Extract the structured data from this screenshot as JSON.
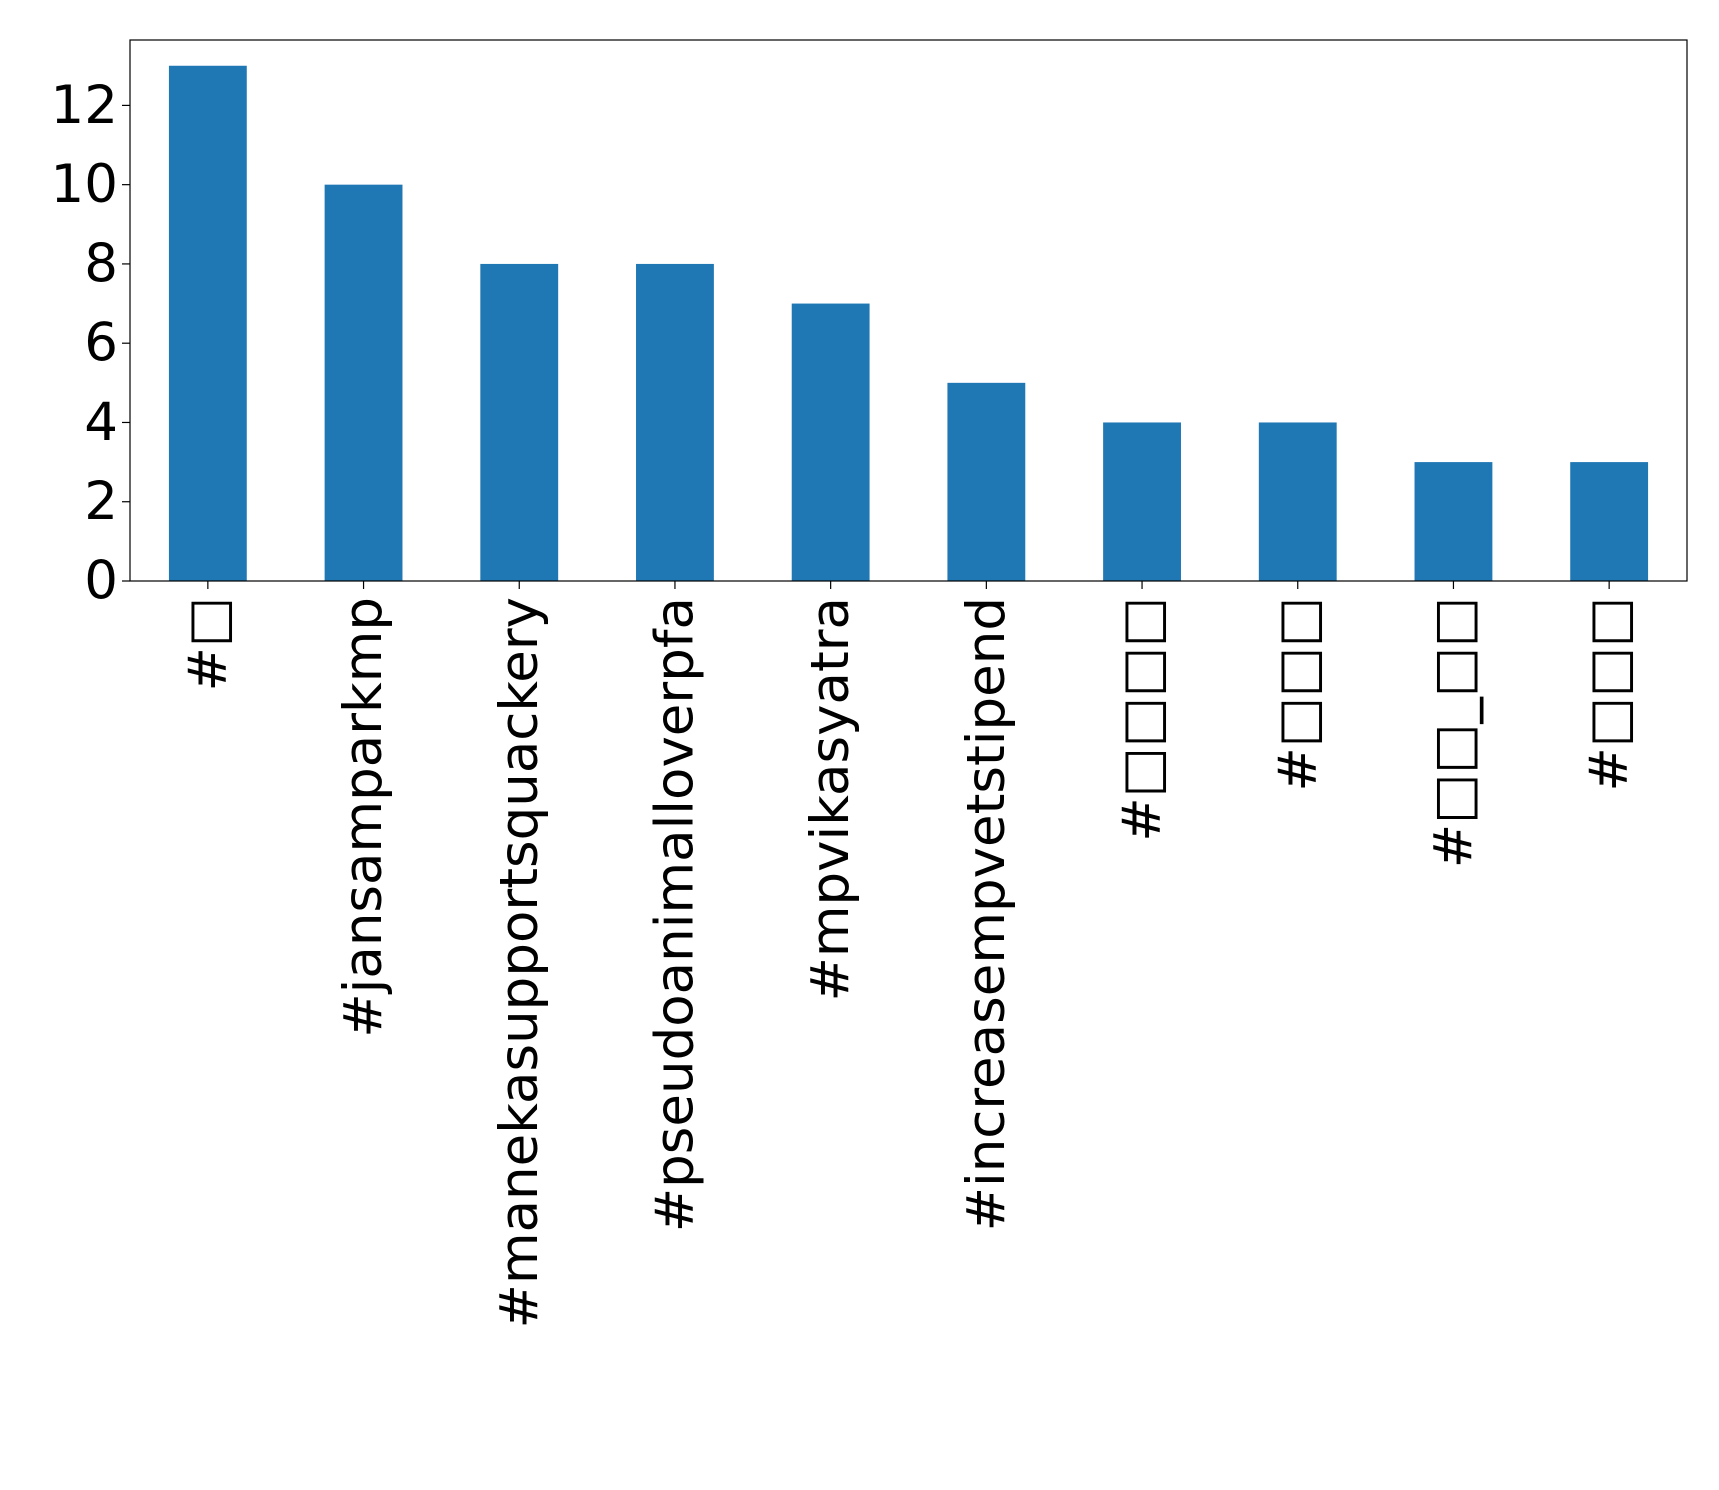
{
  "chart_data": {
    "type": "bar",
    "categories": [
      "#□",
      "#jansamparkmp",
      "#manekasupportsquackery",
      "#pseudoanimalloverpfa",
      "#mpvikasyatra",
      "#increasempvetstipend",
      "#□□□□",
      "#□□□",
      "#□□_□□",
      "#□□□"
    ],
    "values": [
      13,
      10,
      8,
      8,
      7,
      5,
      4,
      4,
      3,
      3
    ],
    "color": "#1f77b4",
    "ylim": [
      0,
      13.65
    ],
    "yticks": [
      0,
      2,
      4,
      6,
      8,
      10,
      12
    ]
  }
}
